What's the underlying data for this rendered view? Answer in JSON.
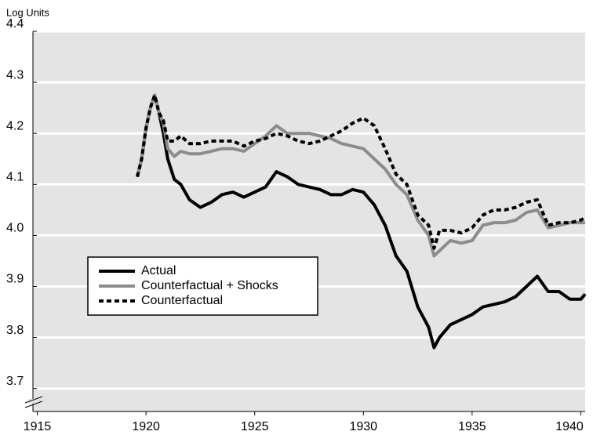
{
  "chart_data": {
    "type": "line",
    "y_axis_label": "Log Units",
    "x": [
      1919.6,
      1919.8,
      1920.0,
      1920.2,
      1920.4,
      1920.6,
      1920.8,
      1921.0,
      1921.3,
      1921.6,
      1922,
      1922.5,
      1923,
      1923.5,
      1924,
      1924.5,
      1925,
      1925.5,
      1926,
      1926.5,
      1927,
      1927.5,
      1928,
      1928.5,
      1929,
      1929.5,
      1930,
      1930.5,
      1931,
      1931.5,
      1932,
      1932.5,
      1933,
      1933.25,
      1933.5,
      1934,
      1934.5,
      1935,
      1935.5,
      1936,
      1936.5,
      1937,
      1937.5,
      1938,
      1938.5,
      1939,
      1939.5,
      1940,
      1940.2
    ],
    "series": [
      {
        "name": "Actual",
        "color": "#000000",
        "style": "solid",
        "values": [
          4.115,
          4.15,
          4.21,
          4.25,
          4.275,
          4.24,
          4.2,
          4.15,
          4.11,
          4.1,
          4.07,
          4.055,
          4.065,
          4.08,
          4.085,
          4.075,
          4.085,
          4.095,
          4.125,
          4.115,
          4.1,
          4.095,
          4.09,
          4.08,
          4.08,
          4.09,
          4.085,
          4.06,
          4.02,
          3.96,
          3.93,
          3.86,
          3.82,
          3.78,
          3.8,
          3.825,
          3.835,
          3.845,
          3.86,
          3.865,
          3.87,
          3.88,
          3.9,
          3.92,
          3.89,
          3.89,
          3.875,
          3.875,
          3.885
        ]
      },
      {
        "name": "Counterfactual + Shocks",
        "color": "#8c8c8c",
        "style": "solid",
        "values": [
          4.115,
          4.15,
          4.21,
          4.25,
          4.275,
          4.24,
          4.22,
          4.17,
          4.155,
          4.165,
          4.16,
          4.16,
          4.165,
          4.17,
          4.17,
          4.165,
          4.18,
          4.195,
          4.215,
          4.2,
          4.2,
          4.2,
          4.195,
          4.19,
          4.18,
          4.175,
          4.17,
          4.15,
          4.13,
          4.1,
          4.08,
          4.03,
          4.0,
          3.96,
          3.97,
          3.99,
          3.985,
          3.99,
          4.02,
          4.025,
          4.025,
          4.03,
          4.045,
          4.05,
          4.015,
          4.02,
          4.025,
          4.025,
          4.025
        ]
      },
      {
        "name": "Counterfactual",
        "color": "#000000",
        "style": "dashed",
        "values": [
          4.115,
          4.15,
          4.21,
          4.25,
          4.275,
          4.24,
          4.225,
          4.185,
          4.185,
          4.195,
          4.18,
          4.18,
          4.185,
          4.185,
          4.185,
          4.175,
          4.185,
          4.19,
          4.2,
          4.195,
          4.185,
          4.18,
          4.185,
          4.195,
          4.205,
          4.22,
          4.23,
          4.215,
          4.17,
          4.12,
          4.1,
          4.04,
          4.02,
          3.975,
          4.01,
          4.01,
          4.005,
          4.015,
          4.04,
          4.05,
          4.05,
          4.055,
          4.065,
          4.07,
          4.02,
          4.025,
          4.025,
          4.03,
          4.035
        ]
      }
    ],
    "xlim": [
      1914.8,
      1940.2
    ],
    "xticks": [
      1915,
      1920,
      1925,
      1930,
      1935,
      1940
    ],
    "ylim": [
      3.655,
      4.4
    ],
    "yticks": [
      3.7,
      3.8,
      3.9,
      {
        "value": 4,
        "label": "4.0"
      },
      4.1,
      4.2,
      4.3,
      4.4
    ],
    "grid": true,
    "legend": "center left"
  }
}
